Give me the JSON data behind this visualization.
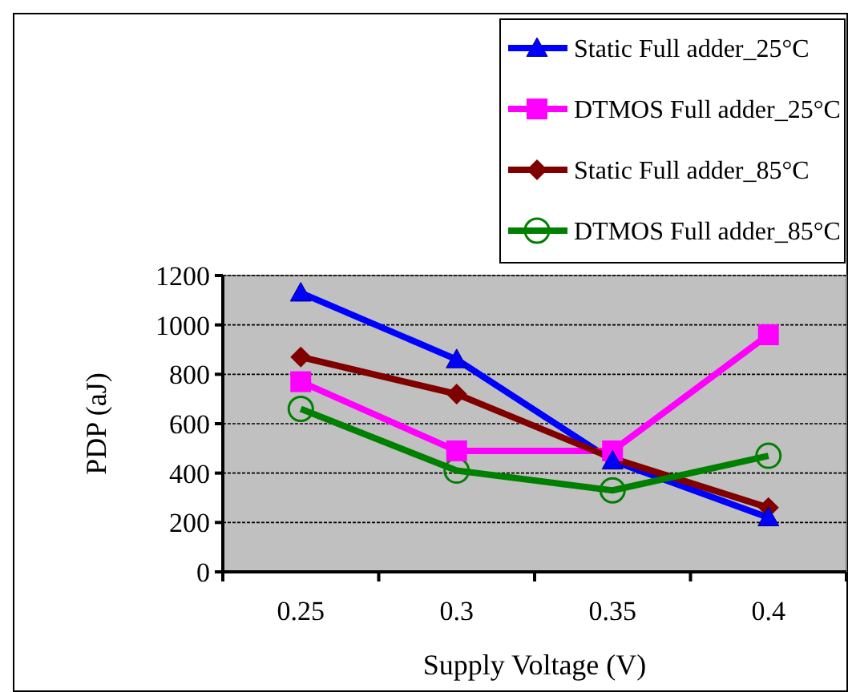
{
  "chart_data": {
    "type": "line",
    "xlabel": "Supply Voltage (V)",
    "ylabel": "PDP (aJ)",
    "categories": [
      "0.25",
      "0.3",
      "0.35",
      "0.4"
    ],
    "ylim": [
      0,
      1200
    ],
    "yticks": [
      0,
      200,
      400,
      600,
      800,
      1000,
      1200
    ],
    "grid": "y",
    "legend": "top right",
    "line_style": "solid",
    "series": [
      {
        "name": "Static Full adder_25°C",
        "color": "#0000ff",
        "marker": "triangle",
        "values": [
          1130,
          860,
          450,
          220
        ]
      },
      {
        "name": "DTMOS Full adder_25°C",
        "color": "#ff00ff",
        "marker": "square",
        "values": [
          770,
          490,
          490,
          960
        ]
      },
      {
        "name": "Static Full adder_85°C",
        "color": "#800000",
        "marker": "diamond",
        "values": [
          870,
          720,
          460,
          260
        ]
      },
      {
        "name": "DTMOS Full adder_85°C",
        "color": "#008000",
        "marker": "circle",
        "values": [
          660,
          410,
          330,
          470
        ]
      }
    ]
  }
}
